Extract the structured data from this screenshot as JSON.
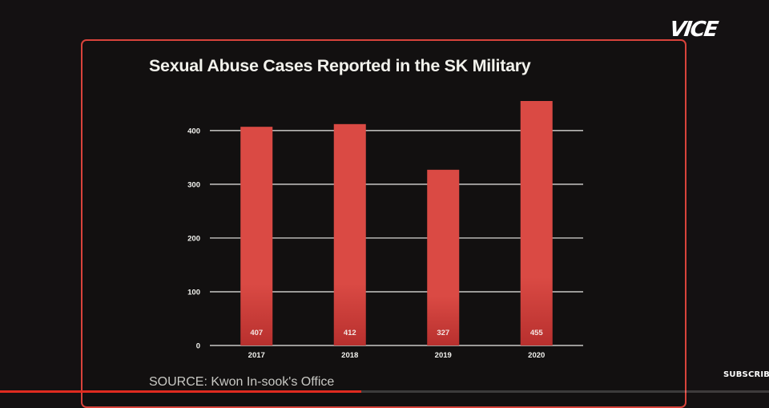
{
  "logo_text": "VICE",
  "subscribe_label": "SUBSCRIBE",
  "source_text": "SOURCE:  Kwon In-sook's Office",
  "video_progress": 0.47,
  "colors": {
    "bar": "#da4a44",
    "bar_bottom": "#b8302e",
    "frame": "#d8433b",
    "background": "#141112",
    "grid": "#ededea"
  },
  "chart_data": {
    "type": "bar",
    "title": "Sexual Abuse Cases Reported in the SK Military",
    "xlabel": "",
    "ylabel": "",
    "categories": [
      "2017",
      "2018",
      "2019",
      "2020"
    ],
    "values": [
      407,
      412,
      327,
      455
    ],
    "data_labels": [
      "407",
      "412",
      "327",
      "455"
    ],
    "yticks": [
      0,
      100,
      200,
      300,
      400
    ],
    "ylim": [
      0,
      455
    ],
    "grid": true
  }
}
